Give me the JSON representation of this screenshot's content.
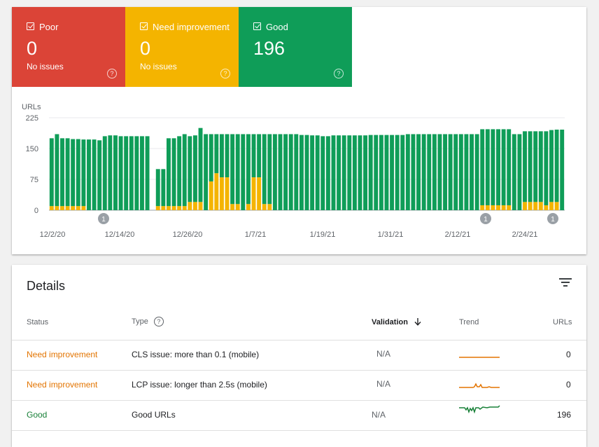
{
  "summary": {
    "poor": {
      "label": "Poor",
      "count": "0",
      "sub": "No issues",
      "color": "#db4437"
    },
    "need_improvement": {
      "label": "Need improvement",
      "count": "0",
      "sub": "No issues",
      "color": "#f4b400"
    },
    "good": {
      "label": "Good",
      "count": "196",
      "sub": "",
      "color": "#0f9d58"
    }
  },
  "chart_data": {
    "type": "bar",
    "stacked": true,
    "ylabel": "URLs",
    "ylim": [
      0,
      225
    ],
    "yticks": [
      "0",
      "75",
      "150",
      "225"
    ],
    "xticks": [
      "12/2/20",
      "12/14/20",
      "12/26/20",
      "1/7/21",
      "1/19/21",
      "1/31/21",
      "2/12/21",
      "2/24/21"
    ],
    "annotations": [
      "1",
      "1",
      "1"
    ],
    "series": [
      {
        "color": "#f4b400",
        "values": [
          10,
          10,
          10,
          10,
          10,
          10,
          10,
          0,
          0,
          0,
          0,
          0,
          0,
          0,
          0,
          0,
          0,
          0,
          0,
          0,
          10,
          10,
          10,
          10,
          10,
          10,
          20,
          20,
          20,
          0,
          70,
          90,
          80,
          80,
          15,
          15,
          0,
          15,
          80,
          80,
          15,
          15,
          0,
          0,
          0,
          0,
          0,
          0,
          0,
          0,
          0,
          0,
          0,
          0,
          0,
          0,
          0,
          0,
          0,
          0,
          0,
          0,
          0,
          0,
          0,
          0,
          0,
          0,
          0,
          0,
          0,
          0,
          0,
          0,
          0,
          0,
          0,
          0,
          0,
          0,
          0,
          12,
          12,
          12,
          12,
          12,
          12,
          0,
          0,
          20,
          20,
          20,
          20,
          12,
          20,
          20,
          0
        ]
      },
      {
        "color": "#0f9d58",
        "values": [
          165,
          175,
          165,
          165,
          163,
          163,
          162,
          172,
          172,
          170,
          180,
          182,
          182,
          180,
          180,
          180,
          180,
          180,
          180,
          0,
          90,
          90,
          165,
          165,
          170,
          175,
          160,
          162,
          180,
          185,
          115,
          95,
          105,
          105,
          170,
          170,
          185,
          170,
          105,
          105,
          170,
          170,
          185,
          185,
          185,
          185,
          185,
          183,
          183,
          182,
          182,
          180,
          180,
          182,
          182,
          182,
          182,
          182,
          182,
          182,
          183,
          183,
          183,
          183,
          183,
          183,
          183,
          185,
          185,
          185,
          185,
          185,
          185,
          185,
          185,
          185,
          185,
          185,
          185,
          185,
          185,
          185,
          185,
          185,
          185,
          185,
          185,
          185,
          185,
          172,
          172,
          172,
          172,
          180,
          175,
          176,
          196
        ]
      }
    ]
  },
  "details": {
    "title": "Details",
    "columns": {
      "status": "Status",
      "type": "Type",
      "validation": "Validation",
      "trend": "Trend",
      "urls": "URLs"
    },
    "rows": [
      {
        "status": "Need improvement",
        "status_color": "#e37400",
        "type": "CLS issue: more than 0.1 (mobile)",
        "validation": "N/A",
        "urls": "0",
        "trend_color": "#e37400"
      },
      {
        "status": "Need improvement",
        "status_color": "#e37400",
        "type": "LCP issue: longer than 2.5s (mobile)",
        "validation": "N/A",
        "urls": "0",
        "trend_color": "#e37400"
      },
      {
        "status": "Good",
        "status_color": "#188038",
        "type": "Good URLs",
        "validation": "N/A",
        "urls": "196",
        "trend_color": "#188038"
      }
    ]
  }
}
